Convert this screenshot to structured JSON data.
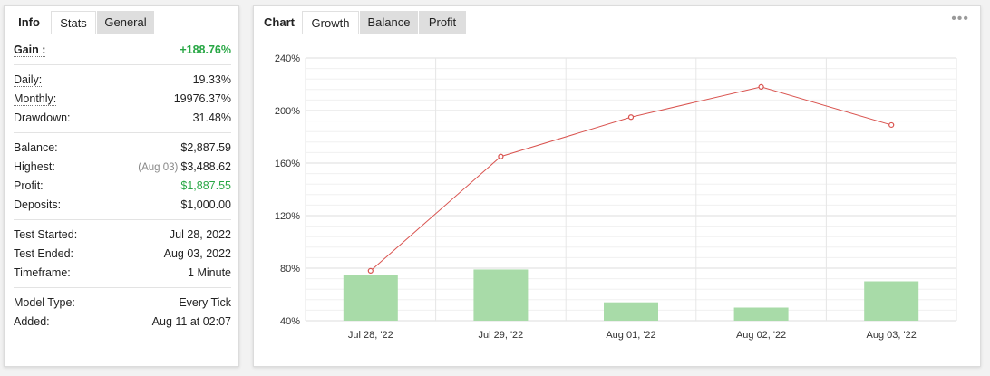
{
  "left_panel": {
    "tabs": [
      {
        "label": "Info"
      },
      {
        "label": "Stats"
      },
      {
        "label": "General"
      }
    ],
    "stats": {
      "gain_label": "Gain :",
      "gain_value": "+188.76%",
      "daily_label": "Daily:",
      "daily_value": "19.33%",
      "monthly_label": "Monthly:",
      "monthly_value": "19976.37%",
      "drawdown_label": "Drawdown:",
      "drawdown_value": "31.48%",
      "balance_label": "Balance:",
      "balance_value": "$2,887.59",
      "highest_label": "Highest:",
      "highest_date": "(Aug 03)",
      "highest_value": "$3,488.62",
      "profit_label": "Profit:",
      "profit_value": "$1,887.55",
      "deposits_label": "Deposits:",
      "deposits_value": "$1,000.00",
      "test_started_label": "Test Started:",
      "test_started_value": "Jul 28, 2022",
      "test_ended_label": "Test Ended:",
      "test_ended_value": "Aug 03, 2022",
      "timeframe_label": "Timeframe:",
      "timeframe_value": "1 Minute",
      "model_type_label": "Model Type:",
      "model_type_value": "Every Tick",
      "added_label": "Added:",
      "added_value": "Aug 11 at 02:07"
    }
  },
  "right_panel": {
    "tabs": [
      {
        "label": "Chart"
      },
      {
        "label": "Growth"
      },
      {
        "label": "Balance"
      },
      {
        "label": "Profit"
      }
    ],
    "more_icon": "ellipsis-icon"
  },
  "colors": {
    "positive": "#28a745",
    "line": "#d9534f",
    "bar": "#a8dba8"
  },
  "chart_data": {
    "type": "bar",
    "categories": [
      "Jul 28, '22",
      "Jul 29, '22",
      "Aug 01, '22",
      "Aug 02, '22",
      "Aug 03, '22"
    ],
    "series": [
      {
        "type": "line",
        "values": [
          78,
          165,
          195,
          218,
          189
        ]
      },
      {
        "type": "bar",
        "values": [
          75,
          79,
          54,
          50,
          70
        ]
      }
    ],
    "ylim": [
      40,
      240
    ],
    "yticks": [
      40,
      80,
      120,
      160,
      200,
      240
    ],
    "ytick_labels": [
      "40%",
      "80%",
      "120%",
      "160%",
      "200%",
      "240%"
    ],
    "grid": true
  }
}
